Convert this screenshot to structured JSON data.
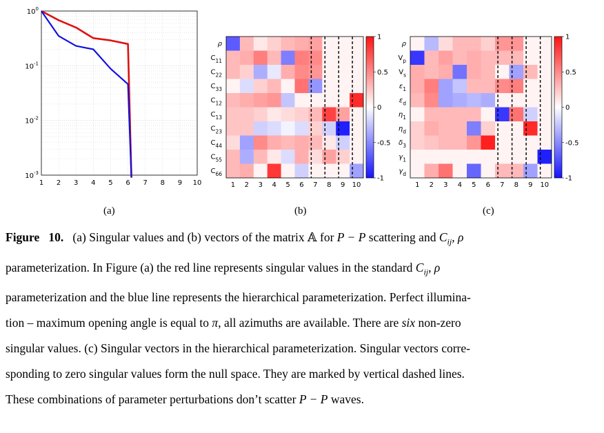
{
  "chart_data": [
    {
      "type": "line",
      "panel": "(a)",
      "title": "",
      "xlabel": "",
      "ylabel": "",
      "yscale": "log",
      "xlim": [
        1,
        10
      ],
      "ylim": [
        0.001,
        1
      ],
      "x_ticks": [
        "1",
        "2",
        "3",
        "4",
        "5",
        "6",
        "7",
        "8",
        "9",
        "10"
      ],
      "y_ticks": [
        {
          "base": "10",
          "exp": "0",
          "value": 1
        },
        {
          "base": "10",
          "exp": "-1",
          "value": 0.1
        },
        {
          "base": "10",
          "exp": "-2",
          "value": 0.01
        },
        {
          "base": "10",
          "exp": "-3",
          "value": 0.001
        }
      ],
      "series": [
        {
          "name": "standard C_ij, rho parameterization",
          "color": "#dd1111",
          "x": [
            1,
            2,
            3,
            4,
            5,
            6,
            6.2
          ],
          "y": [
            1,
            0.68,
            0.5,
            0.32,
            0.29,
            0.25,
            0.0009
          ]
        },
        {
          "name": "hierarchical parameterization",
          "color": "#1111dd",
          "x": [
            1,
            2,
            3,
            4,
            5,
            6,
            6.2
          ],
          "y": [
            1,
            0.35,
            0.23,
            0.2,
            0.088,
            0.046,
            0.0009
          ]
        }
      ]
    },
    {
      "type": "heatmap",
      "panel": "(b)",
      "rows": [
        "ρ",
        "C11",
        "C22",
        "C33",
        "C12",
        "C13",
        "C23",
        "C44",
        "C55",
        "C66"
      ],
      "row_labels": [
        {
          "main": "ρ",
          "sub": ""
        },
        {
          "main": "C",
          "sub": "11"
        },
        {
          "main": "C",
          "sub": "22"
        },
        {
          "main": "C",
          "sub": "33"
        },
        {
          "main": "C",
          "sub": "12"
        },
        {
          "main": "C",
          "sub": "13"
        },
        {
          "main": "C",
          "sub": "23"
        },
        {
          "main": "C",
          "sub": "44"
        },
        {
          "main": "C",
          "sub": "55"
        },
        {
          "main": "C",
          "sub": "66"
        }
      ],
      "columns": [
        "1",
        "2",
        "3",
        "4",
        "5",
        "6",
        "7",
        "8",
        "9",
        "10"
      ],
      "dashed_columns": [
        7,
        8,
        9,
        10
      ],
      "colorbar_ticks": [
        "1",
        "0.5",
        "0",
        "-0.5",
        "-1"
      ],
      "vmin": -1,
      "vmax": 1,
      "values": [
        [
          -0.7,
          0.3,
          0.1,
          0.2,
          0.3,
          0.35,
          0.4,
          0.05,
          0.05,
          0.05
        ],
        [
          0.3,
          0.35,
          0.55,
          0.3,
          -0.55,
          0.55,
          0.5,
          0.05,
          0.05,
          0.05
        ],
        [
          0.3,
          0.2,
          -0.35,
          -0.1,
          0.35,
          0.5,
          0.45,
          0.05,
          0.05,
          0.05
        ],
        [
          0.05,
          -0.15,
          0.2,
          0.3,
          0.05,
          0.6,
          -0.45,
          0.05,
          0.05,
          0.05
        ],
        [
          0.3,
          0.35,
          0.4,
          0.45,
          -0.25,
          0.05,
          0.05,
          0.05,
          0.05,
          0.9
        ],
        [
          0.25,
          0.25,
          0.2,
          0.1,
          0.15,
          0.2,
          0.3,
          0.8,
          0.4,
          0.05
        ],
        [
          0.25,
          0.25,
          -0.2,
          -0.15,
          -0.05,
          -0.15,
          0.2,
          -0.2,
          -0.95,
          0.05
        ],
        [
          0.15,
          -0.4,
          0.5,
          0.35,
          0.3,
          0.35,
          0.3,
          0.1,
          -0.2,
          0.05
        ],
        [
          0.3,
          -0.35,
          0.3,
          0.1,
          -0.15,
          0.35,
          0.15,
          0.4,
          0.2,
          0.05
        ],
        [
          0.3,
          0.35,
          0.05,
          0.85,
          0.05,
          -0.2,
          0.05,
          0.05,
          0.05,
          -0.4
        ]
      ]
    },
    {
      "type": "heatmap",
      "panel": "(c)",
      "rows": [
        "ρ",
        "Vp",
        "Vs",
        "ε1",
        "εd",
        "η1",
        "ηd",
        "δ3",
        "γ1",
        "γd"
      ],
      "row_labels": [
        {
          "main": "ρ",
          "sub": ""
        },
        {
          "main": "V",
          "sub": "p"
        },
        {
          "main": "V",
          "sub": "s"
        },
        {
          "main": "ε",
          "sub": "1"
        },
        {
          "main": "ε",
          "sub": "d"
        },
        {
          "main": "η",
          "sub": "1"
        },
        {
          "main": "η",
          "sub": "d"
        },
        {
          "main": "δ",
          "sub": "3"
        },
        {
          "main": "γ",
          "sub": "1"
        },
        {
          "main": "γ",
          "sub": "d"
        }
      ],
      "columns": [
        "1",
        "2",
        "3",
        "4",
        "5",
        "6",
        "7",
        "8",
        "9",
        "10"
      ],
      "dashed_columns": [
        7,
        8,
        9,
        10
      ],
      "colorbar_ticks": [
        "1",
        "0.5",
        "0",
        "-0.5",
        "-1"
      ],
      "vmin": -1,
      "vmax": 1,
      "values": [
        [
          0.05,
          -0.3,
          0.15,
          0.3,
          0.3,
          0.2,
          0.45,
          0.45,
          0.05,
          0.05
        ],
        [
          -0.85,
          0.3,
          0.4,
          0.3,
          0.35,
          0.3,
          0.3,
          0.3,
          0.05,
          0.05
        ],
        [
          0.35,
          0.3,
          0.35,
          -0.6,
          0.35,
          0.3,
          0.05,
          -0.4,
          0.3,
          0.05
        ],
        [
          0.35,
          0.55,
          -0.4,
          -0.25,
          0.3,
          0.3,
          0.5,
          0.55,
          0.05,
          0.05
        ],
        [
          0.3,
          0.5,
          -0.4,
          -0.35,
          -0.3,
          -0.35,
          0.05,
          0.05,
          0.05,
          0.05
        ],
        [
          0.05,
          0.3,
          0.3,
          0.3,
          0.3,
          0.05,
          -0.85,
          0.6,
          -0.2,
          0.05
        ],
        [
          0.2,
          0.35,
          0.3,
          0.3,
          -0.55,
          0.2,
          0.05,
          0.05,
          0.9,
          0.05
        ],
        [
          0.2,
          0.25,
          0.3,
          0.3,
          0.45,
          0.95,
          0.05,
          0.05,
          0.05,
          0.05
        ],
        [
          0.05,
          0.05,
          0.05,
          0.05,
          0.05,
          0.05,
          0.05,
          0.05,
          0.05,
          -0.95
        ],
        [
          0.05,
          0.35,
          0.6,
          0.05,
          -0.65,
          0.05,
          0.3,
          0.3,
          -0.4,
          0.05
        ]
      ]
    }
  ],
  "subfigure_labels": [
    "(a)",
    "(b)",
    "(c)"
  ],
  "caption": {
    "label": "Figure   10.",
    "part1": "   (a) Singular values and (b) vectors of the matrix ",
    "matrix_symbol": "𝔸",
    "part2": " for ",
    "math_pp": "P − P",
    "part3": " scattering and ",
    "math_cij": "C",
    "math_cij_sub": "ij",
    "math_rho": ", ρ",
    "line2_a": "parameterization. In Figure (a) the red line represents singular values in the standard ",
    "line2_cij": "C",
    "line2_cij_sub": "ij",
    "line2_rho": ", ρ",
    "line3": "parameterization and the blue line represents the hierarchical parameterization. Perfect illumina-",
    "line4_a": "tion – maximum opening angle is equal to ",
    "line4_pi": "π",
    "line4_b": ", all azimuths are available. There are ",
    "line4_six": "six",
    "line4_c": " non-zero",
    "line5": "singular values. (c) Singular vectors in the hierarchical parameterization. Singular vectors corre-",
    "line6": "sponding to zero singular values form the null space. They are marked by vertical dashed lines.",
    "line7_a": "These combinations of parameter perturbations don’t scatter ",
    "line7_pp": "P − P",
    "line7_b": " waves."
  }
}
